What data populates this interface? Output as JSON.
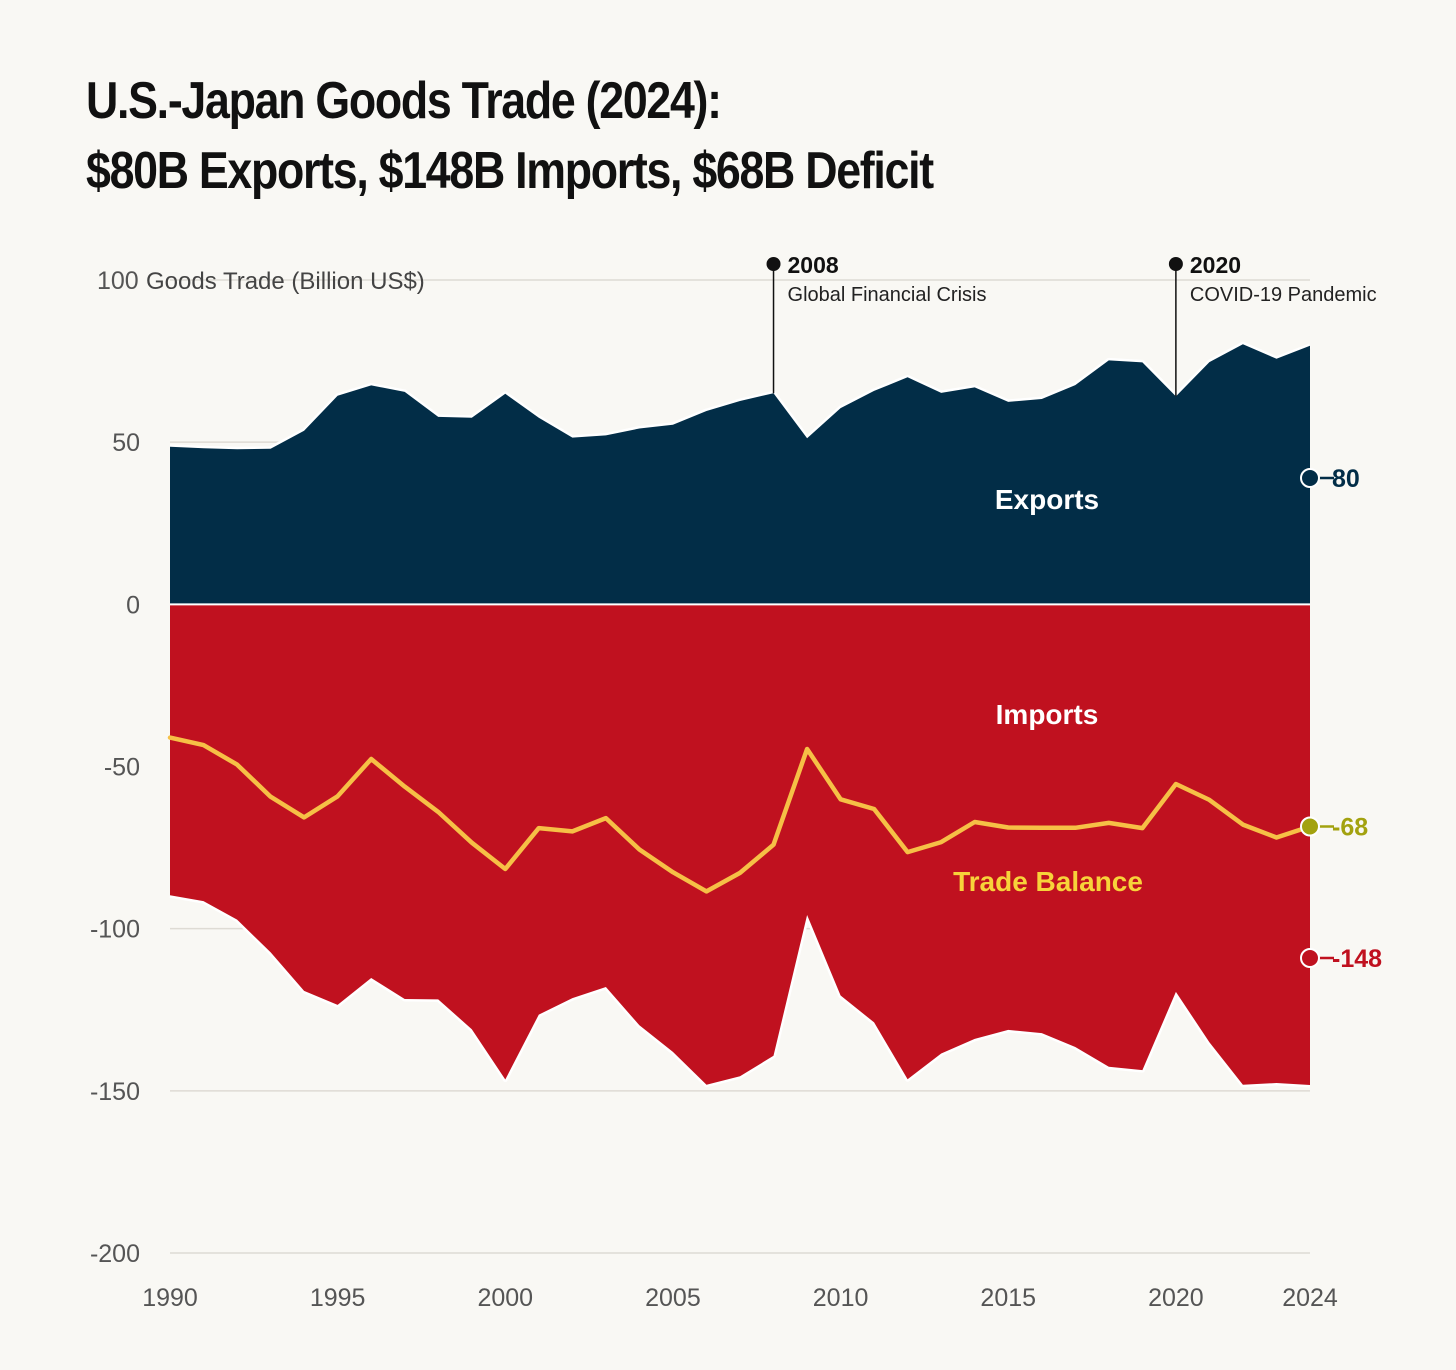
{
  "title": {
    "line1": "U.S.-Japan Goods Trade (2024):",
    "line2": "$80B Exports, $148B Imports, $68B Deficit"
  },
  "chart_data": {
    "type": "area",
    "title": "U.S.-Japan Goods Trade (2024): $80B Exports, $148B Imports, $68B Deficit",
    "ylabel": "Goods Trade (Billion US$)",
    "xlabel": "",
    "ylim": [
      -200,
      100
    ],
    "xlim": [
      1990,
      2024
    ],
    "grid": true,
    "x_ticks": [
      1990,
      1995,
      2000,
      2005,
      2010,
      2015,
      2020,
      2024
    ],
    "y_ticks": [
      100,
      50,
      0,
      -50,
      -100,
      -150,
      -200
    ],
    "x": [
      1990,
      1991,
      1992,
      1993,
      1994,
      1995,
      1996,
      1997,
      1998,
      1999,
      2000,
      2001,
      2002,
      2003,
      2004,
      2005,
      2006,
      2007,
      2008,
      2009,
      2010,
      2011,
      2012,
      2013,
      2014,
      2015,
      2016,
      2017,
      2018,
      2019,
      2020,
      2021,
      2022,
      2023,
      2024
    ],
    "series": [
      {
        "name": "Exports",
        "color": "#022d47",
        "values": [
          48.6,
          48.1,
          47.8,
          48.0,
          53.5,
          64.3,
          67.5,
          65.5,
          57.8,
          57.5,
          64.9,
          57.5,
          51.4,
          52.1,
          54.2,
          55.4,
          59.6,
          62.7,
          65.1,
          51.2,
          60.5,
          65.8,
          70.0,
          65.2,
          66.9,
          62.4,
          63.3,
          67.6,
          75.2,
          74.6,
          64.1,
          74.7,
          80.2,
          75.7,
          79.7
        ]
      },
      {
        "name": "Imports",
        "color": "#c0111f",
        "values": [
          -89.7,
          -91.5,
          -97.2,
          -107.3,
          -119.2,
          -123.5,
          -115.2,
          -121.7,
          -121.8,
          -131.0,
          -146.5,
          -126.5,
          -121.4,
          -118.0,
          -129.8,
          -138.0,
          -148.1,
          -145.5,
          -139.2,
          -95.8,
          -120.6,
          -128.9,
          -146.4,
          -138.5,
          -134.0,
          -131.2,
          -132.2,
          -136.5,
          -142.6,
          -143.6,
          -119.5,
          -135.0,
          -148.1,
          -147.6,
          -148.2
        ]
      },
      {
        "name": "Trade Balance",
        "color": "#f6c046",
        "values": [
          -41.1,
          -43.4,
          -49.4,
          -59.3,
          -65.7,
          -59.2,
          -47.7,
          -56.2,
          -64.0,
          -73.5,
          -81.6,
          -69.0,
          -70.0,
          -65.9,
          -75.6,
          -82.6,
          -88.5,
          -82.8,
          -74.1,
          -44.6,
          -60.1,
          -63.1,
          -76.4,
          -73.3,
          -67.1,
          -68.8,
          -68.9,
          -68.9,
          -67.4,
          -69.0,
          -55.4,
          -60.3,
          -67.9,
          -71.9,
          -68.5
        ]
      }
    ],
    "series_labels": {
      "exports": "Exports",
      "imports": "Imports",
      "balance": "Trade Balance"
    },
    "end_labels": {
      "exports": "80",
      "balance": "-68",
      "imports": "-148"
    },
    "annotations": [
      {
        "year": 2008,
        "value": 65.1,
        "label": "2008",
        "description": "Global Financial Crisis"
      },
      {
        "year": 2020,
        "value": 64.1,
        "label": "2020",
        "description": "COVID-19 Pandemic"
      }
    ],
    "colors": {
      "exports": "#022d47",
      "imports": "#c0111f",
      "balance": "#f6c046",
      "balance_label": "#f7d33a",
      "balance_end": "#a3a20f",
      "grid": "#dedbd4",
      "outline": "#ffffff"
    }
  }
}
